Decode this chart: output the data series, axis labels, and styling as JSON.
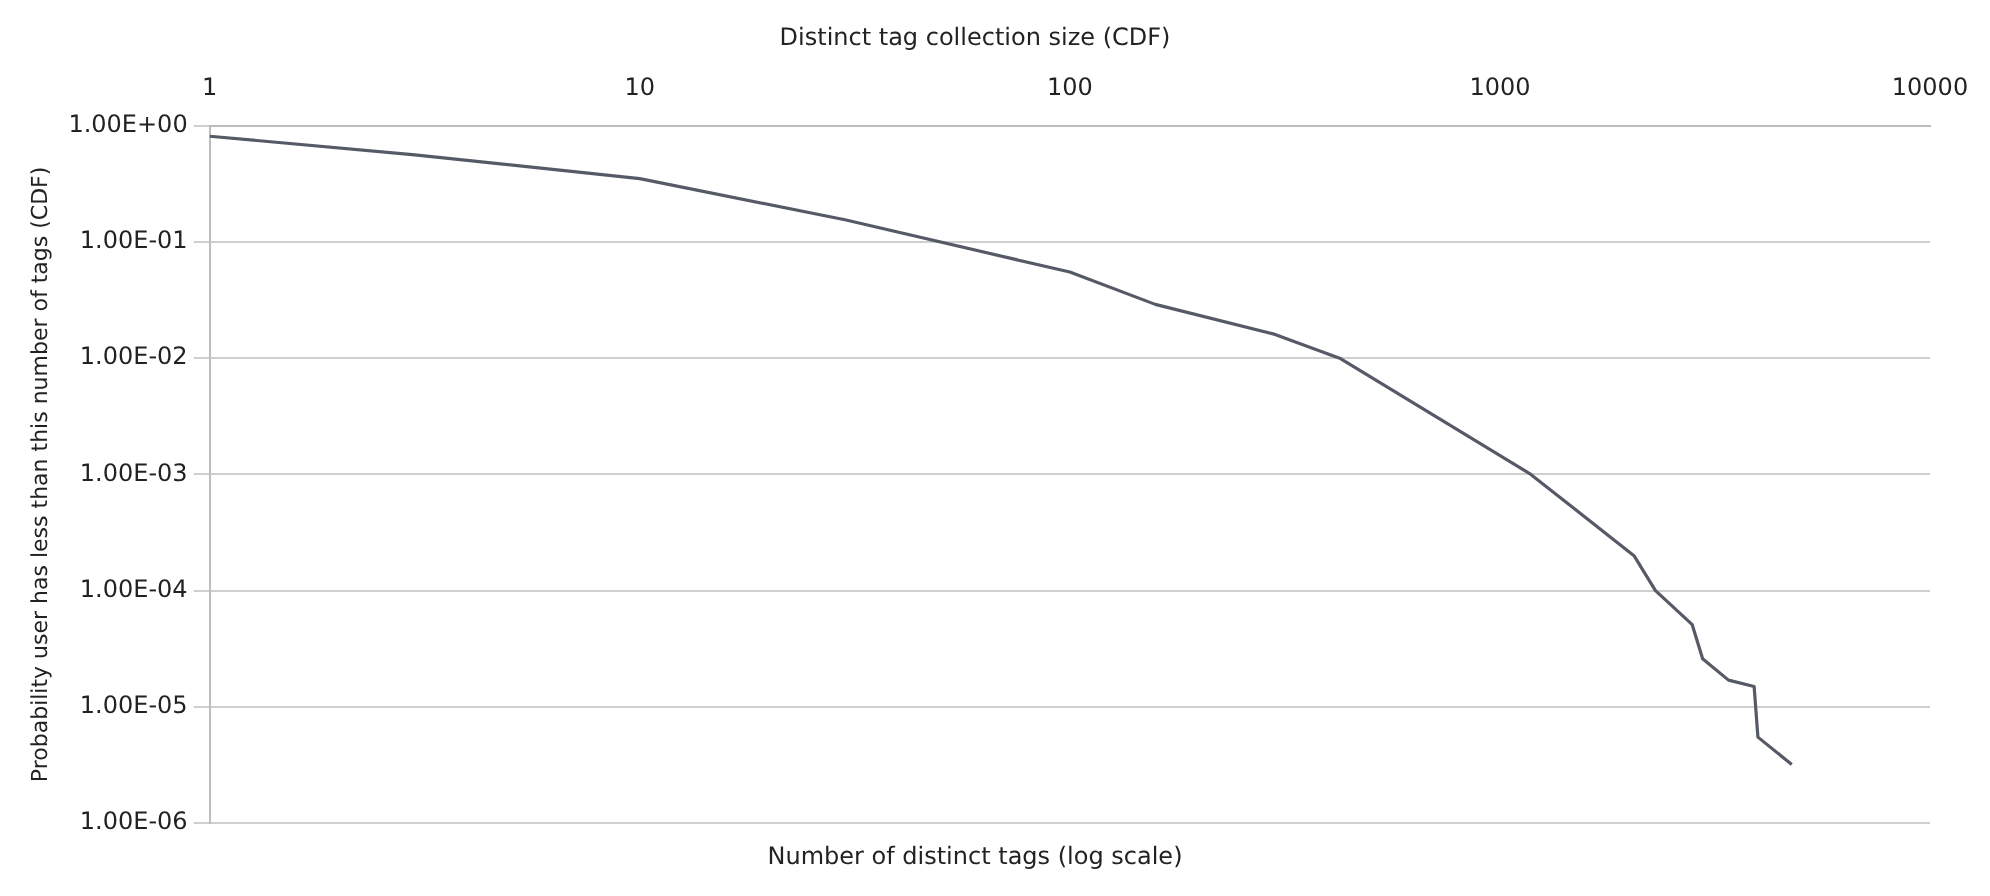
{
  "chart_data": {
    "type": "line",
    "title": "Distinct tag collection size (CDF)",
    "xlabel": "Number of distinct tags (log scale)",
    "ylabel": "Probability user has less than this number of tags (CDF)",
    "x": [
      1,
      3,
      10,
      30,
      100,
      158,
      300,
      424,
      1180,
      2050,
      2300,
      2800,
      2960,
      3400,
      3900,
      3980,
      4770
    ],
    "series": [
      {
        "color": "#555a66",
        "values": [
          0.81,
          0.56,
          0.35,
          0.155,
          0.055,
          0.029,
          0.016,
          0.01,
          0.001,
          0.0002,
          0.0001,
          5.1e-05,
          2.6e-05,
          1.7e-05,
          1.5e-05,
          5.5e-06,
          3.2e-06
        ]
      }
    ],
    "log": "xy",
    "grid": "y",
    "legend": false,
    "marker": "none",
    "line_style": "solid",
    "xlim": [
      1,
      10000
    ],
    "xticks": [
      1,
      10,
      100,
      1000,
      10000
    ],
    "ylim": [
      1e-06,
      1
    ],
    "yticks": [
      {
        "value": 1,
        "label": "1.00E+00"
      },
      {
        "value": 0.1,
        "label": "1.00E-01"
      },
      {
        "value": 0.01,
        "label": "1.00E-02"
      },
      {
        "value": 0.001,
        "label": "1.00E-03"
      },
      {
        "value": 0.0001,
        "label": "1.00E-04"
      },
      {
        "value": 1e-05,
        "label": "1.00E-05"
      },
      {
        "value": 1e-06,
        "label": "1.00E-06"
      }
    ]
  }
}
